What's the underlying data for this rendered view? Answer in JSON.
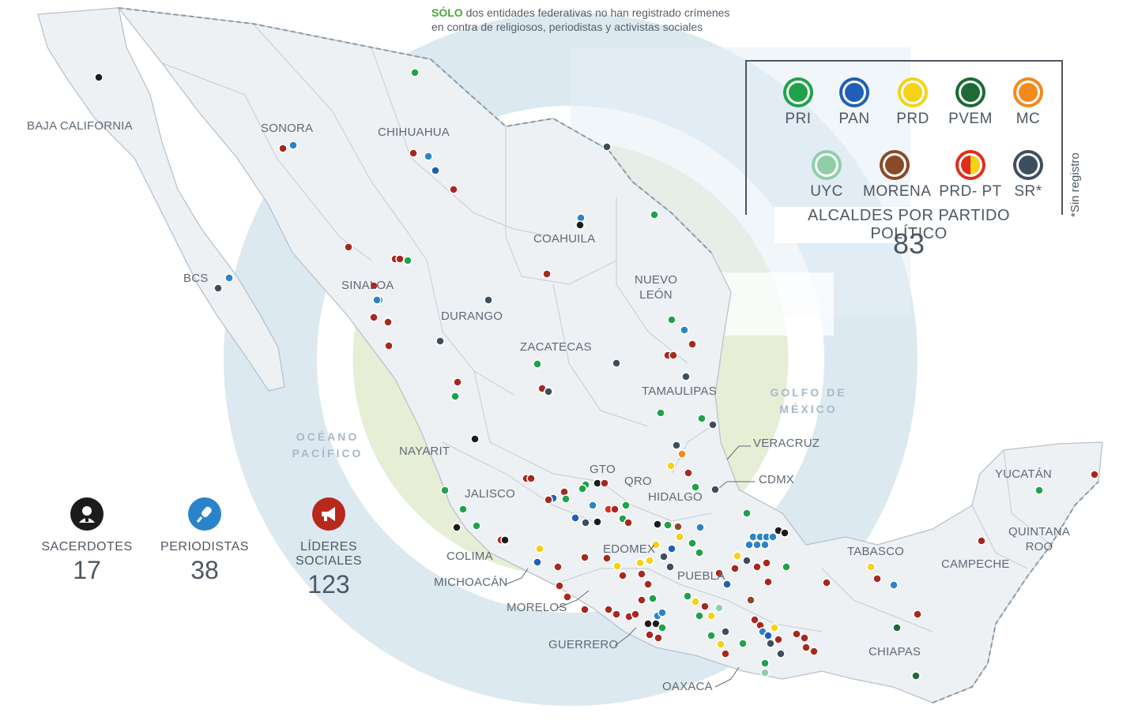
{
  "headline": {
    "highlight": "SÓLO",
    "line1_rest": "dos entidades federativas no han registrado crímenes",
    "line2": "en contra de religiosos, periodistas y activistas sociales"
  },
  "colors": {
    "PRI": "#1fa24a",
    "PAN": "#1f5fb8",
    "PRD": "#f5d215",
    "PVEM": "#1c6a36",
    "MC": "#f28a1b",
    "UYC": "#8fcfa8",
    "MORENA": "#8a4a25",
    "PRD_PT": "#e32b1c",
    "SR": "#3d4f5e",
    "crime_red": "#a8281e",
    "journalist_blue": "#2b84c9",
    "priest_black": "#1c1c1c",
    "land": "#eef1f4",
    "state_border": "#b8c2cb",
    "ring_blue": "#d8e7f0",
    "ring_green": "#e3ebcf"
  },
  "legend": {
    "title": "ALCALDES POR PARTIDO POLÍTICO",
    "count": "83",
    "note": "*Sin registro",
    "parties": [
      {
        "name": "PRI",
        "color_key": "PRI"
      },
      {
        "name": "PAN",
        "color_key": "PAN"
      },
      {
        "name": "PRD",
        "color_key": "PRD"
      },
      {
        "name": "PVEM",
        "color_key": "PVEM"
      },
      {
        "name": "MC",
        "color_key": "MC"
      },
      {
        "name": "UYC",
        "color_key": "UYC"
      },
      {
        "name": "MORENA",
        "color_key": "MORENA"
      },
      {
        "name": "PRD- PT",
        "color_key": "PRD_PT"
      },
      {
        "name": "SR*",
        "color_key": "SR"
      }
    ]
  },
  "stats": [
    {
      "label": "SACERDOTES",
      "value": "17",
      "icon": "priest-icon"
    },
    {
      "label": "PERIODISTAS",
      "value": "38",
      "icon": "microphone-icon"
    },
    {
      "label": "LÍDERES SOCIALES",
      "value": "123",
      "icon": "megaphone-icon"
    }
  ],
  "states": {
    "baja_california": "BAJA CALIFORNIA",
    "sonora": "SONORA",
    "chihuahua": "CHIHUAHUA",
    "coahuila": "COAHUILA",
    "nuevo_leon": "NUEVO LEÓN",
    "bcs": "BCS",
    "sinaloa": "SINALOA",
    "durango": "DURANGO",
    "zacatecas": "ZACATECAS",
    "tamaulipas": "TAMAULIPAS",
    "nayarit": "NAYARIT",
    "gto": "GTO",
    "qro": "QRO",
    "hidalgo": "HIDALGO",
    "veracruz": "VERACRUZ",
    "cdmx": "CDMX",
    "jalisco": "JALISCO",
    "colima": "COLIMA",
    "michoacan": "MICHOACÁN",
    "edomex": "EDOMEX",
    "puebla": "PUEBLA",
    "morelos": "MORELOS",
    "guerrero": "GUERRERO",
    "oaxaca": "OAXACA",
    "tabasco": "TABASCO",
    "chiapas": "CHIAPAS",
    "campeche": "CAMPECHE",
    "yucatan": "YUCATÁN",
    "quintana_roo": "QUINTANA ROO"
  },
  "seas": {
    "gulf": "GOLFO DE MÉXICO",
    "pacific": "OCÉANO PACÍFICO"
  }
}
